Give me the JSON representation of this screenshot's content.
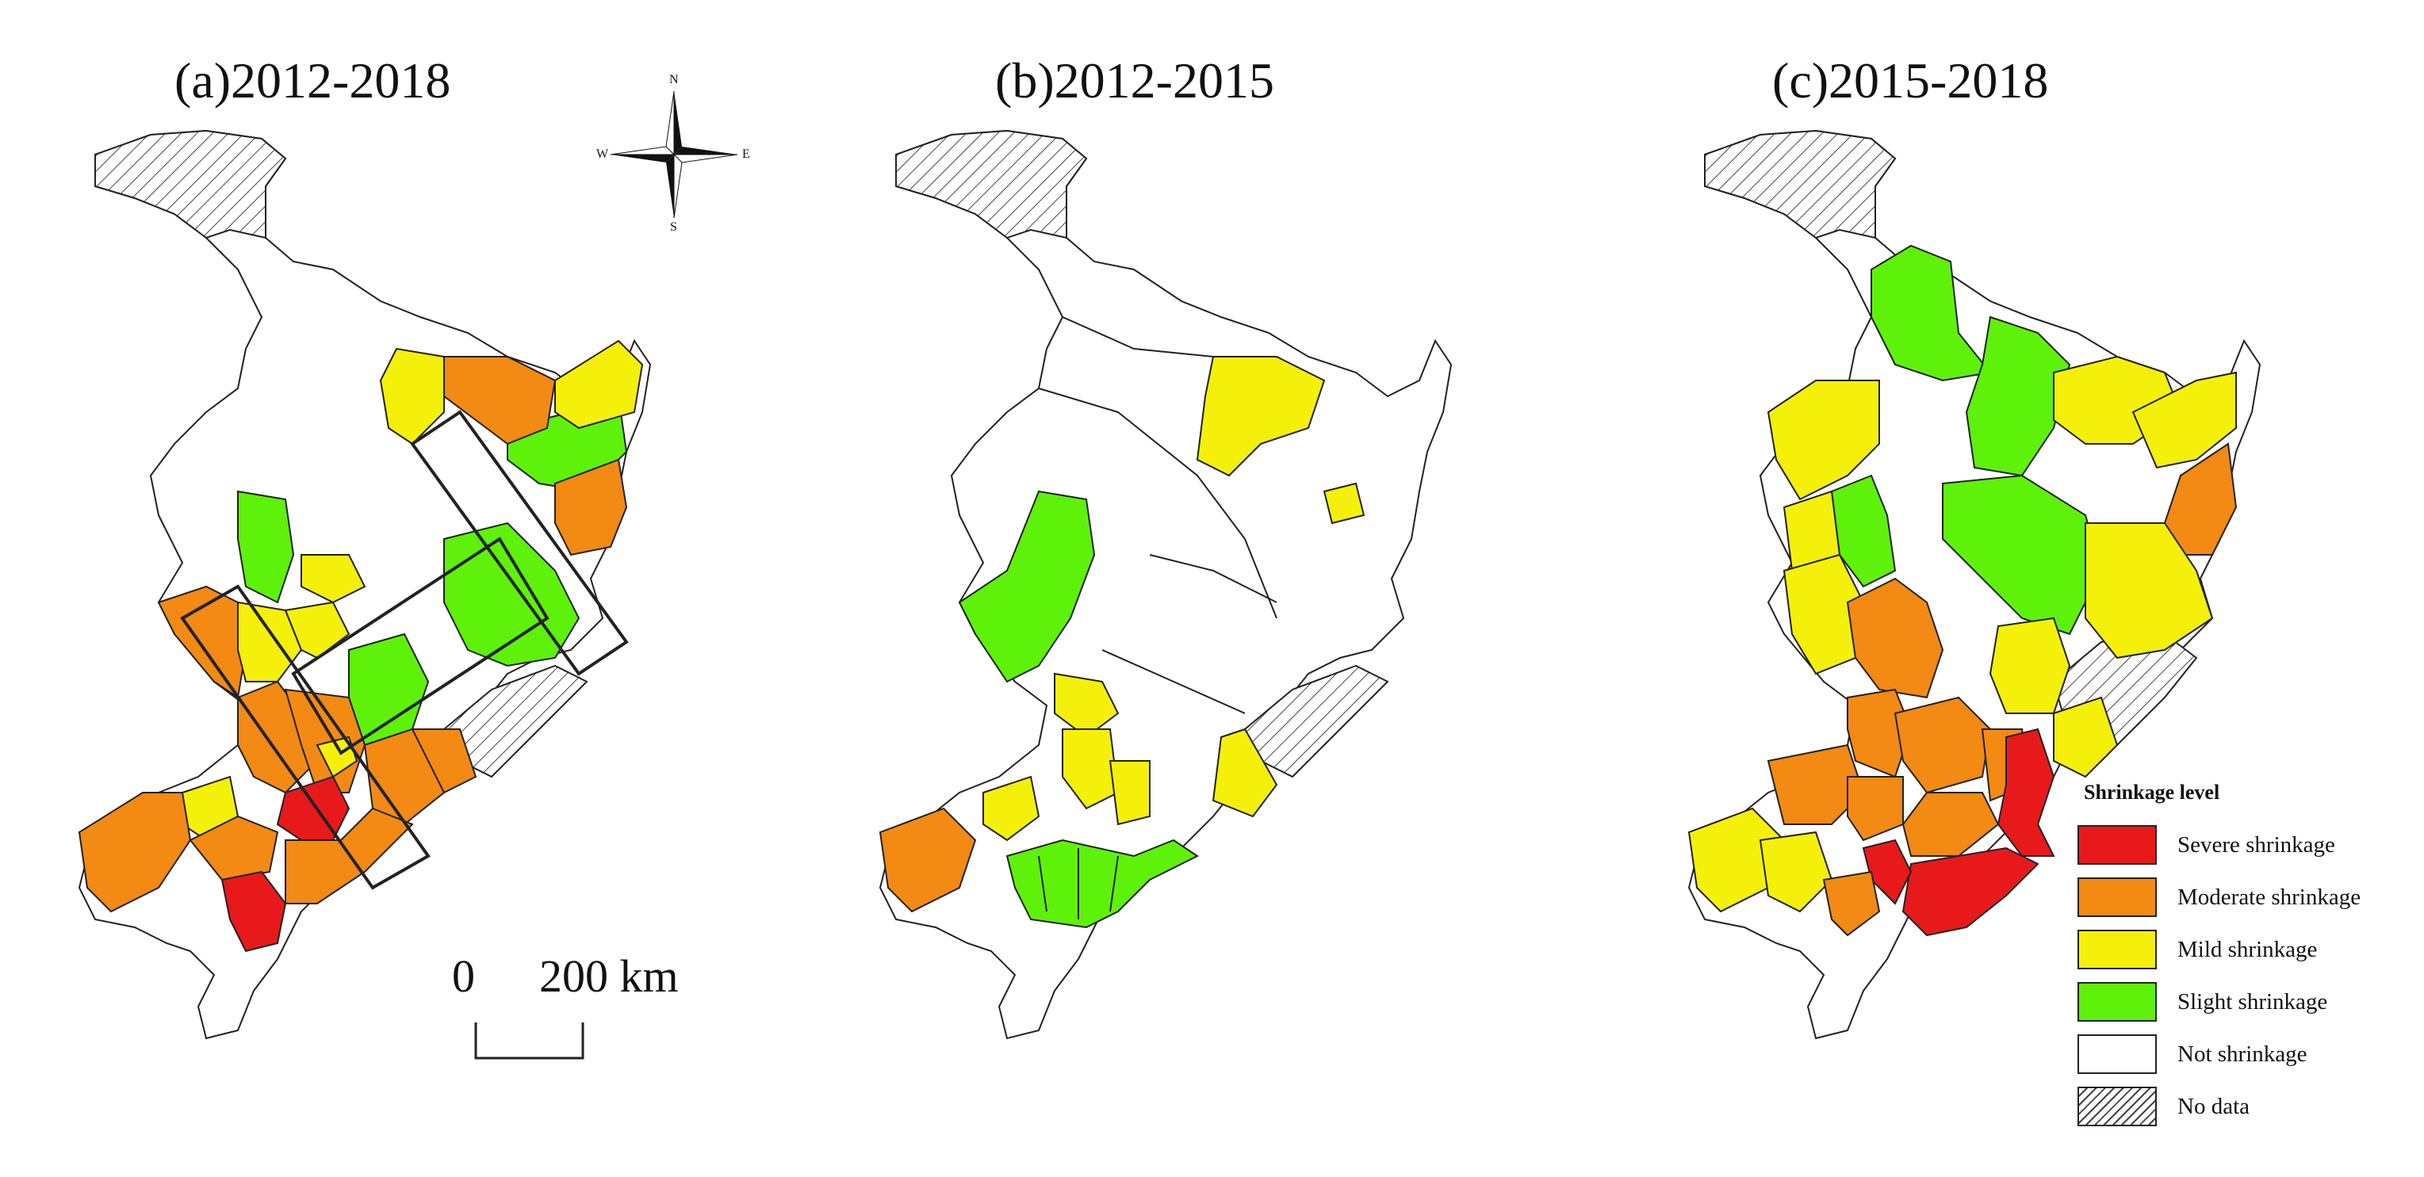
{
  "panels": [
    {
      "id": "a",
      "title": "(a)2012-2018"
    },
    {
      "id": "b",
      "title": "(b)2012-2015"
    },
    {
      "id": "c",
      "title": "(c)2015-2018"
    }
  ],
  "compass": {
    "north": "N",
    "south": "S",
    "east": "E",
    "west": "W"
  },
  "scale_bar": {
    "start": "0",
    "end": "200 km"
  },
  "legend": {
    "title": "Shrinkage level",
    "items": [
      {
        "label": "Severe shrinkage",
        "color": "#e8191b"
      },
      {
        "label": "Moderate shrinkage",
        "color": "#f28a14"
      },
      {
        "label": "Mild shrinkage",
        "color": "#f5f00a"
      },
      {
        "label": "Slight shrinkage",
        "color": "#5ef20a"
      },
      {
        "label": "Not shrinkage",
        "color": "#ffffff"
      },
      {
        "label": "No data",
        "color": "hatched"
      }
    ]
  }
}
